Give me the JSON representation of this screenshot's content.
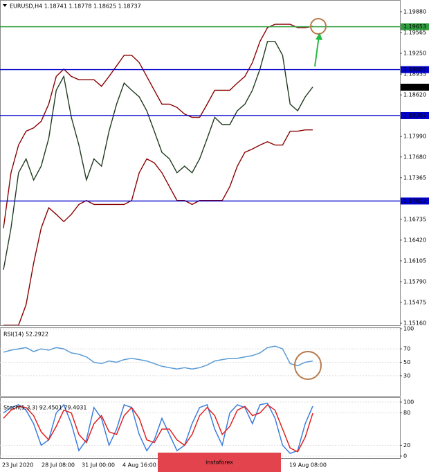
{
  "chart_data": [
    {
      "type": "line",
      "title": "EURUSD,H4  1.18741 1.18778 1.18625 1.18737",
      "ylim": [
        1.15129,
        1.20058
      ],
      "yticks": [
        {
          "value": 1.1988,
          "label": "1.19880"
        },
        {
          "value": 1.19565,
          "label": "1.19565"
        },
        {
          "value": 1.1925,
          "label": "1.19250"
        },
        {
          "value": 1.18935,
          "label": "1.18935"
        },
        {
          "value": 1.1862,
          "label": "1.18620"
        },
        {
          "value": 1.1799,
          "label": "1.17990"
        },
        {
          "value": 1.1768,
          "label": "1.17680"
        },
        {
          "value": 1.17365,
          "label": "1.17365"
        },
        {
          "value": 1.16735,
          "label": "1.16735"
        },
        {
          "value": 1.1642,
          "label": "1.16420"
        },
        {
          "value": 1.16105,
          "label": "1.16105"
        },
        {
          "value": 1.1579,
          "label": "1.15790"
        },
        {
          "value": 1.15475,
          "label": "1.15475"
        },
        {
          "value": 1.1516,
          "label": "1.15160"
        }
      ],
      "levels": [
        {
          "value": 1.19653,
          "color": "#2e9e3e"
        },
        {
          "value": 1.19003,
          "color": "#0000cc"
        },
        {
          "value": 1.18307,
          "color": "#0000cc"
        },
        {
          "value": 1.17012,
          "color": "#0000cc"
        }
      ],
      "last": 1.18737,
      "series": [
        {
          "color": "#1f3a1f",
          "values": [
            1.1597,
            1.166,
            1.1744,
            1.1765,
            1.1733,
            1.1754,
            1.1796,
            1.1869,
            1.189,
            1.1828,
            1.1786,
            1.1733,
            1.1765,
            1.1754,
            1.1807,
            1.1848,
            1.188,
            1.1869,
            1.1859,
            1.1838,
            1.1807,
            1.1775,
            1.1765,
            1.1744,
            1.1754,
            1.1744,
            1.1765,
            1.1796,
            1.1828,
            1.1817,
            1.1817,
            1.1838,
            1.1848,
            1.1869,
            1.1901,
            1.1943,
            1.1943,
            1.1922,
            1.1848,
            1.1838,
            1.1859,
            1.1874
          ]
        },
        {
          "color": "#8b0000",
          "values": [
            1.166,
            1.1744,
            1.1786,
            1.1807,
            1.1812,
            1.1822,
            1.1848,
            1.189,
            1.1901,
            1.189,
            1.1885,
            1.1885,
            1.1885,
            1.1875,
            1.189,
            1.1906,
            1.1922,
            1.1922,
            1.1911,
            1.189,
            1.1869,
            1.1848,
            1.1848,
            1.1843,
            1.1833,
            1.1828,
            1.1828,
            1.1848,
            1.1869,
            1.1869,
            1.1869,
            1.188,
            1.189,
            1.1911,
            1.1943,
            1.1964,
            1.1969,
            1.1969,
            1.1969,
            1.1964,
            1.1964,
            1.1966
          ]
        },
        {
          "color": "#8b0000",
          "values": [
            1.1513,
            1.1513,
            1.1513,
            1.1544,
            1.1607,
            1.166,
            1.1691,
            1.1681,
            1.167,
            1.1681,
            1.1696,
            1.1702,
            1.1696,
            1.1696,
            1.1696,
            1.1696,
            1.1696,
            1.1702,
            1.1744,
            1.1765,
            1.1759,
            1.1744,
            1.1723,
            1.1702,
            1.1702,
            1.1696,
            1.1702,
            1.1702,
            1.1702,
            1.1702,
            1.1723,
            1.1754,
            1.1775,
            1.178,
            1.1786,
            1.1791,
            1.1786,
            1.1786,
            1.1807,
            1.1807,
            1.1809,
            1.1809
          ]
        }
      ]
    },
    {
      "type": "line",
      "title": "RSI(14) 52.2922",
      "ylim": [
        0,
        100
      ],
      "yticks": [
        100,
        70,
        50,
        30
      ],
      "series": [
        {
          "color": "#5b9bd5",
          "values": [
            65,
            68,
            70,
            72,
            66,
            70,
            68,
            72,
            70,
            64,
            62,
            58,
            50,
            48,
            52,
            50,
            54,
            56,
            54,
            52,
            48,
            44,
            42,
            40,
            42,
            40,
            42,
            46,
            52,
            54,
            56,
            56,
            58,
            60,
            64,
            72,
            74,
            70,
            48,
            45,
            50,
            52
          ]
        }
      ]
    },
    {
      "type": "line",
      "title": "Stoch(5,3,3) 92.4501 79.4031",
      "ylim": [
        0,
        100
      ],
      "yticks": [
        100,
        80,
        20,
        0
      ],
      "series": [
        {
          "color": "#3b7ddd",
          "values": [
            80,
            90,
            95,
            85,
            60,
            20,
            30,
            80,
            95,
            60,
            10,
            30,
            90,
            70,
            20,
            50,
            95,
            90,
            40,
            10,
            30,
            70,
            40,
            10,
            20,
            60,
            90,
            95,
            50,
            20,
            80,
            95,
            90,
            60,
            95,
            98,
            70,
            20,
            5,
            10,
            60,
            92.4501
          ]
        },
        {
          "color": "#e02020",
          "values": [
            70,
            85,
            92,
            90,
            75,
            45,
            30,
            55,
            85,
            80,
            40,
            25,
            60,
            75,
            45,
            40,
            75,
            90,
            70,
            30,
            25,
            50,
            50,
            30,
            20,
            40,
            75,
            90,
            75,
            40,
            55,
            85,
            92,
            75,
            80,
            95,
            85,
            50,
            15,
            8,
            35,
            79.4031
          ]
        }
      ]
    }
  ],
  "time_axis": [
    "23 Jul 2020",
    "28 Jul 08:00",
    "31 Jul 00:00",
    "4 Aug 16:00",
    "19 Aug 08:00"
  ],
  "watermark": "instaforex"
}
